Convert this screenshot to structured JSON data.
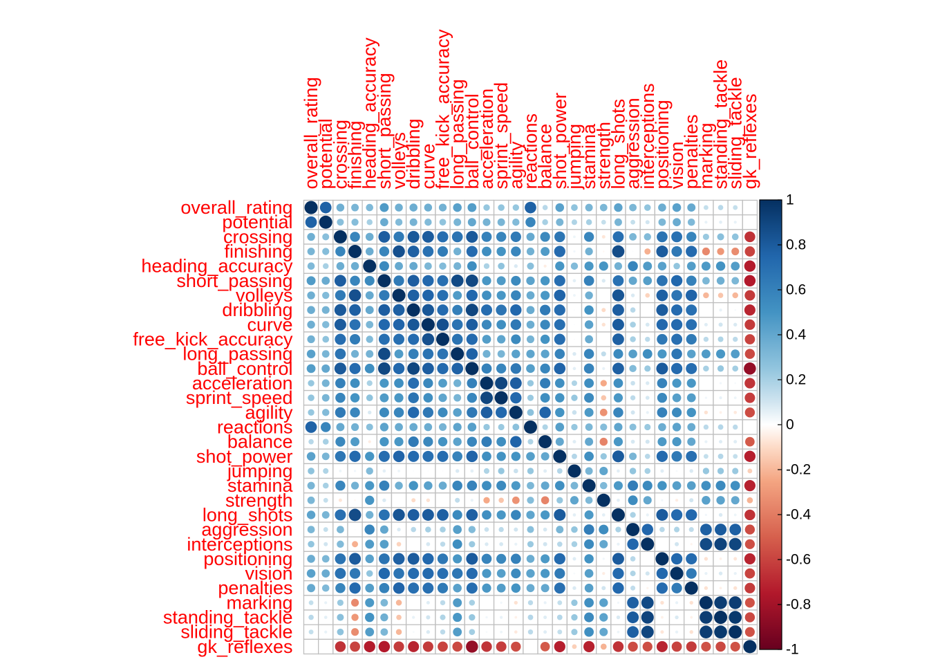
{
  "chart_data": {
    "type": "heatmap",
    "style": "corrplot-circle",
    "label_color": "#ff0000",
    "grid_color": "#bebebe",
    "variables": [
      "overall_rating",
      "potential",
      "crossing",
      "finishing",
      "heading_accuracy",
      "short_passing",
      "volleys",
      "dribbling",
      "curve",
      "free_kick_accuracy",
      "long_passing",
      "ball_control",
      "acceleration",
      "sprint_speed",
      "agility",
      "reactions",
      "balance",
      "shot_power",
      "jumping",
      "stamina",
      "strength",
      "long_shots",
      "aggression",
      "interceptions",
      "positioning",
      "vision",
      "penalties",
      "marking",
      "standing_tackle",
      "sliding_tackle",
      "gk_reflexes"
    ],
    "color_scale": {
      "range": [
        -1,
        1
      ],
      "stops": [
        [
          -1,
          "#67001F"
        ],
        [
          -0.75,
          "#B2182B"
        ],
        [
          -0.5,
          "#D6604D"
        ],
        [
          -0.25,
          "#F4A582"
        ],
        [
          -0.1,
          "#FDDBC7"
        ],
        [
          0,
          "#FFFFFF"
        ],
        [
          0.1,
          "#D1E5F0"
        ],
        [
          0.25,
          "#92C5DE"
        ],
        [
          0.5,
          "#4393C3"
        ],
        [
          0.75,
          "#2166AC"
        ],
        [
          1,
          "#053061"
        ]
      ],
      "tick_labels": [
        "1",
        "0.8",
        "0.6",
        "0.4",
        "0.2",
        "0",
        "-0.2",
        "-0.4",
        "-0.6",
        "-0.8",
        "-1"
      ]
    },
    "matrix": [
      [
        1,
        0.77,
        0.36,
        0.33,
        0.31,
        0.46,
        0.36,
        0.37,
        0.36,
        0.35,
        0.43,
        0.45,
        0.24,
        0.25,
        0.24,
        0.77,
        0.16,
        0.43,
        0.26,
        0.33,
        0.32,
        0.42,
        0.32,
        0.25,
        0.37,
        0.43,
        0.39,
        0.13,
        0.16,
        0.13,
        0.0
      ],
      [
        0.77,
        1,
        0.28,
        0.29,
        0.2,
        0.38,
        0.3,
        0.34,
        0.3,
        0.26,
        0.33,
        0.4,
        0.34,
        0.33,
        0.3,
        0.58,
        0.2,
        0.33,
        0.18,
        0.2,
        0.13,
        0.33,
        0.13,
        0.1,
        0.32,
        0.38,
        0.31,
        0.05,
        0.06,
        0.05,
        0.0
      ],
      [
        0.36,
        0.28,
        1,
        0.58,
        0.37,
        0.79,
        0.64,
        0.81,
        0.8,
        0.71,
        0.68,
        0.81,
        0.6,
        0.58,
        0.64,
        0.39,
        0.56,
        0.66,
        0.04,
        0.57,
        -0.07,
        0.7,
        0.32,
        0.3,
        0.68,
        0.69,
        0.58,
        0.23,
        0.28,
        0.26,
        -0.66
      ],
      [
        0.33,
        0.29,
        0.58,
        1,
        0.37,
        0.58,
        0.85,
        0.78,
        0.69,
        0.63,
        0.35,
        0.72,
        0.53,
        0.5,
        0.57,
        0.35,
        0.46,
        0.73,
        0.03,
        0.35,
        -0.02,
        0.87,
        0.01,
        -0.22,
        0.8,
        0.65,
        0.73,
        -0.35,
        -0.3,
        -0.34,
        -0.6
      ],
      [
        0.31,
        0.2,
        0.37,
        0.37,
        1,
        0.55,
        0.39,
        0.39,
        0.32,
        0.3,
        0.34,
        0.53,
        0.19,
        0.26,
        0.08,
        0.28,
        -0.05,
        0.49,
        0.3,
        0.48,
        0.49,
        0.35,
        0.58,
        0.46,
        0.43,
        0.25,
        0.45,
        0.47,
        0.5,
        0.45,
        -0.74
      ],
      [
        0.46,
        0.38,
        0.79,
        0.58,
        0.55,
        1,
        0.64,
        0.79,
        0.74,
        0.7,
        0.88,
        0.89,
        0.48,
        0.46,
        0.55,
        0.42,
        0.49,
        0.71,
        0.06,
        0.6,
        0.08,
        0.69,
        0.4,
        0.44,
        0.68,
        0.74,
        0.6,
        0.32,
        0.36,
        0.32,
        -0.75
      ],
      [
        0.36,
        0.3,
        0.64,
        0.85,
        0.39,
        0.64,
        1,
        0.78,
        0.76,
        0.7,
        0.46,
        0.74,
        0.52,
        0.48,
        0.58,
        0.38,
        0.48,
        0.76,
        0.04,
        0.36,
        0.0,
        0.83,
        0.08,
        -0.12,
        0.78,
        0.67,
        0.76,
        -0.2,
        -0.16,
        -0.2,
        -0.63
      ],
      [
        0.37,
        0.34,
        0.81,
        0.78,
        0.39,
        0.79,
        0.78,
        1,
        0.82,
        0.72,
        0.61,
        0.9,
        0.71,
        0.67,
        0.74,
        0.38,
        0.64,
        0.72,
        0.01,
        0.5,
        -0.1,
        0.79,
        0.16,
        0.0,
        0.8,
        0.72,
        0.7,
        0.0,
        0.05,
        0.02,
        -0.71
      ],
      [
        0.36,
        0.3,
        0.8,
        0.69,
        0.32,
        0.74,
        0.76,
        0.82,
        1,
        0.85,
        0.68,
        0.79,
        0.56,
        0.52,
        0.65,
        0.37,
        0.56,
        0.7,
        0.01,
        0.43,
        -0.08,
        0.8,
        0.2,
        0.09,
        0.74,
        0.73,
        0.7,
        0.07,
        0.1,
        0.08,
        -0.63
      ],
      [
        0.35,
        0.26,
        0.71,
        0.63,
        0.3,
        0.7,
        0.7,
        0.72,
        0.85,
        1,
        0.68,
        0.73,
        0.45,
        0.41,
        0.55,
        0.34,
        0.5,
        0.71,
        0.01,
        0.38,
        0.0,
        0.78,
        0.2,
        0.15,
        0.65,
        0.7,
        0.64,
        0.15,
        0.18,
        0.15,
        -0.6
      ],
      [
        0.43,
        0.33,
        0.68,
        0.35,
        0.34,
        0.88,
        0.46,
        0.61,
        0.68,
        0.68,
        1,
        0.77,
        0.35,
        0.33,
        0.43,
        0.41,
        0.42,
        0.59,
        0.08,
        0.58,
        0.14,
        0.55,
        0.44,
        0.53,
        0.48,
        0.66,
        0.43,
        0.46,
        0.48,
        0.45,
        -0.58
      ],
      [
        0.45,
        0.4,
        0.81,
        0.72,
        0.53,
        0.89,
        0.74,
        0.9,
        0.79,
        0.73,
        0.77,
        1,
        0.6,
        0.57,
        0.65,
        0.44,
        0.57,
        0.76,
        0.06,
        0.59,
        0.05,
        0.78,
        0.3,
        0.23,
        0.8,
        0.73,
        0.71,
        0.2,
        0.24,
        0.21,
        -0.85
      ],
      [
        0.24,
        0.34,
        0.6,
        0.53,
        0.19,
        0.48,
        0.52,
        0.71,
        0.56,
        0.45,
        0.35,
        0.6,
        1,
        0.9,
        0.79,
        0.24,
        0.63,
        0.52,
        0.18,
        0.53,
        -0.24,
        0.52,
        0.12,
        0.08,
        0.59,
        0.48,
        0.48,
        0.0,
        0.03,
        0.02,
        -0.65
      ],
      [
        0.25,
        0.33,
        0.58,
        0.5,
        0.26,
        0.46,
        0.48,
        0.67,
        0.52,
        0.41,
        0.33,
        0.57,
        0.9,
        1,
        0.74,
        0.23,
        0.53,
        0.5,
        0.24,
        0.55,
        -0.16,
        0.48,
        0.15,
        0.09,
        0.56,
        0.44,
        0.45,
        0.03,
        0.05,
        0.04,
        -0.62
      ],
      [
        0.24,
        0.3,
        0.64,
        0.57,
        0.08,
        0.55,
        0.58,
        0.74,
        0.65,
        0.55,
        0.43,
        0.65,
        0.79,
        0.74,
        1,
        0.27,
        0.76,
        0.5,
        0.12,
        0.47,
        -0.32,
        0.58,
        0.1,
        0.05,
        0.6,
        0.55,
        0.5,
        -0.08,
        -0.04,
        -0.06,
        -0.57
      ],
      [
        0.77,
        0.58,
        0.39,
        0.35,
        0.28,
        0.42,
        0.38,
        0.38,
        0.37,
        0.34,
        0.41,
        0.44,
        0.24,
        0.23,
        0.27,
        1,
        0.18,
        0.44,
        0.24,
        0.32,
        0.29,
        0.41,
        0.28,
        0.23,
        0.37,
        0.42,
        0.38,
        0.15,
        0.17,
        0.15,
        0.0
      ],
      [
        0.16,
        0.2,
        0.56,
        0.46,
        -0.05,
        0.49,
        0.48,
        0.64,
        0.56,
        0.5,
        0.42,
        0.57,
        0.63,
        0.53,
        0.76,
        0.18,
        1,
        0.4,
        0.07,
        0.4,
        -0.37,
        0.48,
        0.09,
        0.1,
        0.47,
        0.48,
        0.4,
        0.05,
        0.07,
        0.07,
        -0.52
      ],
      [
        0.43,
        0.33,
        0.66,
        0.73,
        0.49,
        0.71,
        0.76,
        0.72,
        0.7,
        0.71,
        0.59,
        0.76,
        0.52,
        0.5,
        0.5,
        0.44,
        0.4,
        1,
        0.17,
        0.52,
        0.24,
        0.8,
        0.33,
        0.16,
        0.73,
        0.64,
        0.7,
        0.13,
        0.17,
        0.13,
        -0.73
      ],
      [
        0.26,
        0.18,
        0.04,
        0.03,
        0.3,
        0.06,
        0.04,
        0.01,
        0.01,
        0.01,
        0.08,
        0.06,
        0.18,
        0.24,
        0.12,
        0.24,
        0.07,
        0.17,
        1,
        0.33,
        0.41,
        0.06,
        0.25,
        0.2,
        0.07,
        0.02,
        0.08,
        0.24,
        0.24,
        0.23,
        -0.13
      ],
      [
        0.33,
        0.2,
        0.57,
        0.35,
        0.48,
        0.6,
        0.36,
        0.5,
        0.43,
        0.38,
        0.58,
        0.59,
        0.53,
        0.55,
        0.47,
        0.32,
        0.4,
        0.52,
        0.33,
        1,
        0.31,
        0.47,
        0.62,
        0.55,
        0.5,
        0.44,
        0.44,
        0.52,
        0.55,
        0.52,
        -0.72
      ],
      [
        0.32,
        0.13,
        -0.07,
        -0.02,
        0.49,
        0.08,
        0.0,
        -0.1,
        -0.08,
        0.0,
        0.14,
        0.05,
        -0.24,
        -0.16,
        -0.32,
        0.29,
        -0.37,
        0.24,
        0.41,
        0.31,
        1,
        0.06,
        0.54,
        0.4,
        0.03,
        -0.05,
        0.1,
        0.43,
        0.42,
        0.4,
        -0.21
      ],
      [
        0.42,
        0.33,
        0.7,
        0.87,
        0.35,
        0.69,
        0.83,
        0.79,
        0.8,
        0.78,
        0.55,
        0.78,
        0.52,
        0.48,
        0.58,
        0.41,
        0.48,
        0.8,
        0.06,
        0.47,
        0.06,
        1,
        0.19,
        0.05,
        0.8,
        0.73,
        0.74,
        0.03,
        0.08,
        0.04,
        -0.66
      ],
      [
        0.32,
        0.13,
        0.32,
        0.01,
        0.58,
        0.4,
        0.08,
        0.16,
        0.2,
        0.2,
        0.44,
        0.3,
        0.12,
        0.15,
        0.1,
        0.28,
        0.09,
        0.33,
        0.25,
        0.62,
        0.54,
        0.19,
        1,
        0.75,
        0.16,
        0.18,
        0.14,
        0.78,
        0.8,
        0.78,
        -0.57
      ],
      [
        0.25,
        0.1,
        0.3,
        -0.22,
        0.46,
        0.44,
        -0.12,
        0.0,
        0.09,
        0.15,
        0.53,
        0.23,
        0.08,
        0.09,
        0.05,
        0.23,
        0.1,
        0.16,
        0.2,
        0.55,
        0.4,
        0.05,
        0.75,
        1,
        0.0,
        0.1,
        -0.03,
        0.88,
        0.91,
        0.9,
        -0.56
      ],
      [
        0.37,
        0.32,
        0.68,
        0.8,
        0.43,
        0.68,
        0.78,
        0.8,
        0.74,
        0.65,
        0.48,
        0.8,
        0.59,
        0.56,
        0.6,
        0.37,
        0.47,
        0.73,
        0.07,
        0.5,
        0.03,
        0.8,
        0.16,
        0.0,
        1,
        0.74,
        0.72,
        -0.08,
        -0.04,
        -0.07,
        -0.71
      ],
      [
        0.43,
        0.38,
        0.69,
        0.65,
        0.25,
        0.74,
        0.67,
        0.72,
        0.73,
        0.7,
        0.66,
        0.73,
        0.48,
        0.44,
        0.55,
        0.42,
        0.48,
        0.64,
        0.02,
        0.44,
        -0.05,
        0.73,
        0.18,
        0.1,
        0.74,
        1,
        0.64,
        0.05,
        0.08,
        0.05,
        -0.6
      ],
      [
        0.39,
        0.31,
        0.58,
        0.73,
        0.45,
        0.6,
        0.76,
        0.7,
        0.7,
        0.64,
        0.43,
        0.71,
        0.48,
        0.45,
        0.5,
        0.38,
        0.4,
        0.7,
        0.08,
        0.44,
        0.1,
        0.74,
        0.14,
        -0.03,
        0.72,
        0.64,
        1,
        -0.08,
        -0.04,
        -0.08,
        -0.63
      ],
      [
        0.13,
        0.05,
        0.23,
        -0.35,
        0.47,
        0.32,
        -0.2,
        0.0,
        0.07,
        0.15,
        0.46,
        0.2,
        0.0,
        0.03,
        -0.08,
        0.15,
        0.05,
        0.13,
        0.24,
        0.52,
        0.43,
        0.03,
        0.78,
        0.88,
        -0.08,
        0.05,
        -0.08,
        1,
        0.94,
        0.94,
        -0.55
      ],
      [
        0.16,
        0.06,
        0.28,
        -0.3,
        0.5,
        0.36,
        -0.16,
        0.05,
        0.1,
        0.18,
        0.48,
        0.24,
        0.03,
        0.05,
        -0.04,
        0.17,
        0.07,
        0.17,
        0.24,
        0.55,
        0.42,
        0.08,
        0.8,
        0.91,
        -0.04,
        0.08,
        -0.04,
        0.94,
        1,
        0.96,
        -0.58
      ],
      [
        0.13,
        0.05,
        0.26,
        -0.34,
        0.45,
        0.32,
        -0.2,
        0.02,
        0.08,
        0.15,
        0.45,
        0.21,
        0.02,
        0.04,
        -0.06,
        0.15,
        0.07,
        0.13,
        0.23,
        0.52,
        0.4,
        0.04,
        0.78,
        0.9,
        -0.07,
        0.05,
        -0.08,
        0.94,
        0.96,
        1,
        -0.55
      ],
      [
        0.0,
        0.0,
        -0.66,
        -0.6,
        -0.74,
        -0.75,
        -0.63,
        -0.71,
        -0.63,
        -0.6,
        -0.58,
        -0.85,
        -0.65,
        -0.62,
        -0.57,
        0.0,
        -0.52,
        -0.73,
        -0.13,
        -0.72,
        -0.21,
        -0.66,
        -0.57,
        -0.56,
        -0.71,
        -0.6,
        -0.63,
        -0.55,
        -0.58,
        -0.55,
        1
      ]
    ]
  }
}
